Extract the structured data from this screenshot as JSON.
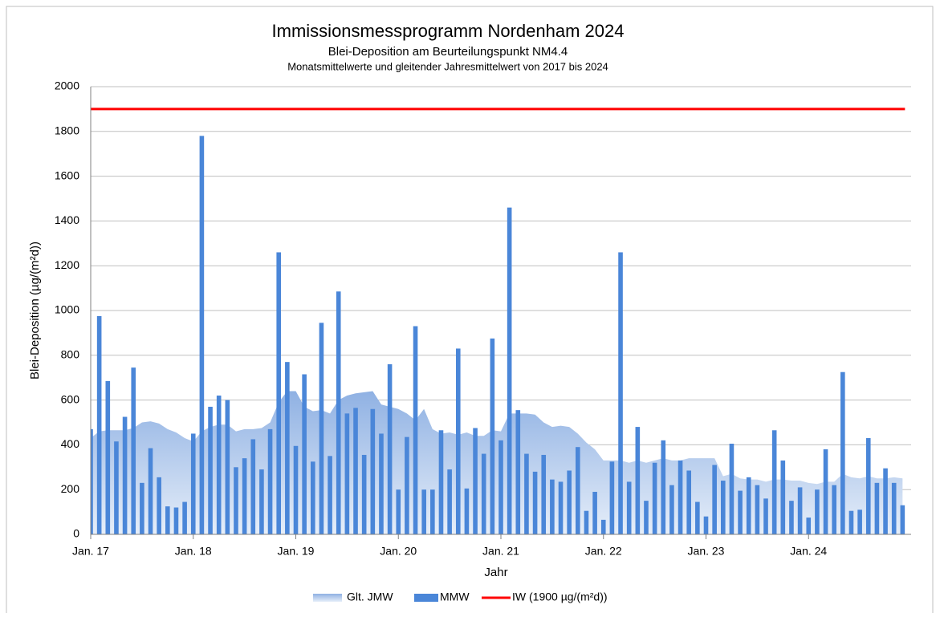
{
  "chart_data": {
    "type": "bar",
    "title": "Immissionsmessprogramm Nordenham 2024",
    "subtitle": "Blei-Deposition am Beurteilungspunkt NM4.4",
    "subtitle2": "Monatsmittelwerte und gleitender Jahresmittelwert von 2017 bis 2024",
    "y_label": "Blei-Deposition  (µg/(m²d))",
    "x_label": "Jahr",
    "categories": [
      "Jan. 17",
      null,
      null,
      null,
      null,
      null,
      null,
      null,
      null,
      null,
      null,
      null,
      "Jan. 18",
      null,
      null,
      null,
      null,
      null,
      null,
      null,
      null,
      null,
      null,
      null,
      "Jan. 19",
      null,
      null,
      null,
      null,
      null,
      null,
      null,
      null,
      null,
      null,
      null,
      "Jan. 20",
      null,
      null,
      null,
      null,
      null,
      null,
      null,
      null,
      null,
      null,
      null,
      "Jan. 21",
      null,
      null,
      null,
      null,
      null,
      null,
      null,
      null,
      null,
      null,
      null,
      "Jan. 22",
      null,
      null,
      null,
      null,
      null,
      null,
      null,
      null,
      null,
      null,
      null,
      "Jan. 23",
      null,
      null,
      null,
      null,
      null,
      null,
      null,
      null,
      null,
      null,
      null,
      "Jan. 24",
      null,
      null,
      null,
      null,
      null,
      null,
      null,
      null,
      null,
      null,
      null
    ],
    "series": [
      {
        "name": "Glt. JMW",
        "type": "area",
        "color": "#a9c4ea",
        "values": [
          430,
          460,
          465,
          465,
          465,
          475,
          500,
          505,
          495,
          470,
          455,
          430,
          415,
          460,
          480,
          490,
          490,
          460,
          470,
          470,
          475,
          500,
          590,
          640,
          640,
          570,
          550,
          555,
          540,
          600,
          620,
          630,
          635,
          640,
          580,
          570,
          560,
          540,
          510,
          560,
          470,
          450,
          455,
          445,
          455,
          440,
          440,
          465,
          460,
          540,
          540,
          540,
          535,
          500,
          480,
          485,
          480,
          450,
          410,
          380,
          330,
          330,
          330,
          320,
          330,
          320,
          330,
          340,
          330,
          330,
          340,
          340,
          340,
          340,
          260,
          270,
          250,
          245,
          245,
          235,
          245,
          245,
          240,
          240,
          230,
          225,
          235,
          235,
          270,
          255,
          250,
          260,
          250,
          250,
          255,
          250
        ]
      },
      {
        "name": "MMW",
        "type": "bar",
        "color": "#4a86d8",
        "values": [
          470,
          975,
          685,
          415,
          525,
          745,
          230,
          385,
          255,
          125,
          120,
          145,
          450,
          1780,
          570,
          620,
          600,
          300,
          340,
          425,
          290,
          470,
          1260,
          770,
          395,
          715,
          325,
          945,
          350,
          1085,
          540,
          565,
          355,
          560,
          450,
          760,
          200,
          435,
          930,
          200,
          200,
          465,
          290,
          830,
          205,
          475,
          360,
          875,
          420,
          1460,
          555,
          360,
          280,
          355,
          245,
          235,
          285,
          390,
          105,
          190,
          65,
          325,
          1260,
          235,
          480,
          150,
          320,
          420,
          220,
          330,
          285,
          145,
          80,
          310,
          240,
          405,
          195,
          255,
          220,
          160,
          465,
          330,
          150,
          210,
          75,
          200,
          380,
          220,
          725,
          105,
          110,
          430,
          230,
          295,
          230,
          130
        ]
      }
    ],
    "reference_line": {
      "name": "IW (1900 µg/(m²d))",
      "value": 1900,
      "color": "#ff0000"
    },
    "ylim": [
      0,
      2000
    ],
    "yticks": [
      0,
      200,
      400,
      600,
      800,
      1000,
      1200,
      1400,
      1600,
      1800,
      2000
    ],
    "grid": true,
    "legend": "bottom"
  }
}
